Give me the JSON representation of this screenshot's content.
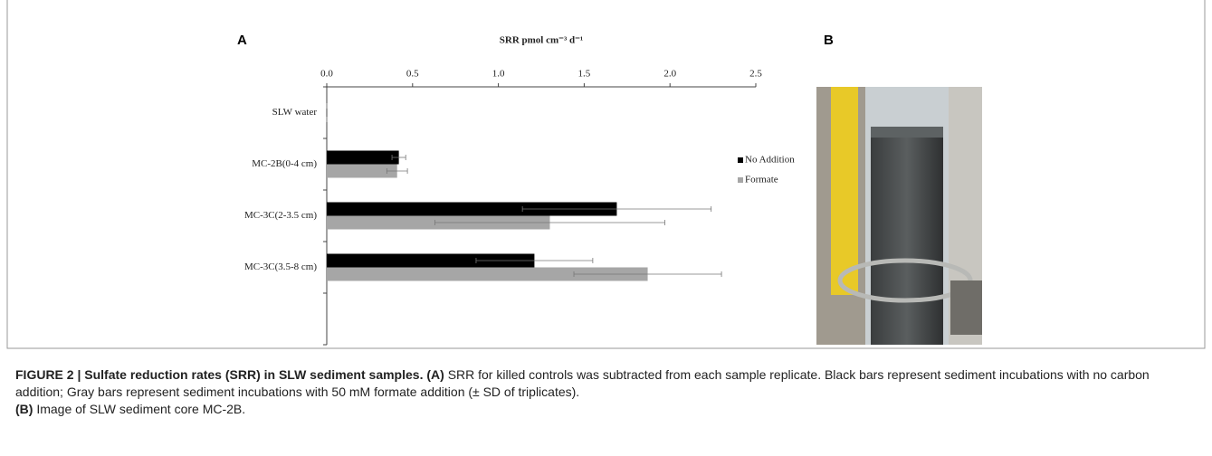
{
  "panel_a_label": "A",
  "panel_b_label": "B",
  "chart_data": {
    "type": "bar",
    "orientation": "horizontal",
    "x_label": "SRR pmol cm⁻³ d⁻¹",
    "categories": [
      "SLW water",
      "MC-2B(0-4 cm)",
      "MC-3C(2-3.5 cm)",
      "MC-3C(3.5-8 cm)",
      null
    ],
    "series": [
      {
        "name": "No Addition",
        "color": "#000000",
        "values": [
          0,
          0.42,
          1.69,
          1.21,
          null
        ],
        "errors": [
          0,
          0.04,
          0.55,
          0.34,
          null
        ]
      },
      {
        "name": "Formate",
        "color": "#a6a6a6",
        "values": [
          0,
          0.41,
          1.3,
          1.87,
          null
        ],
        "errors": [
          0,
          0.06,
          0.67,
          0.43,
          null
        ]
      }
    ],
    "xlim": [
      0,
      2.5
    ],
    "xticks": [
      {
        "value": 0,
        "label": "0.0"
      },
      0.5,
      {
        "value": 1,
        "label": "1.0"
      },
      1.5,
      {
        "value": 2,
        "label": "2.0"
      },
      2.5
    ],
    "legend": "right",
    "grid": false
  },
  "caption": {
    "figure_label": "FIGURE 2 | Sulfate reduction rates (SRR) in SLW sediment samples.",
    "panel_a_tag": "(A)",
    "panel_a_text": "SRR for killed controls was subtracted from each sample replicate. Black bars represent sediment incubations with no carbon addition; Gray bars represent sediment incubations with 50 mM formate addition (± SD of triplicates).",
    "panel_b_tag": "(B)",
    "panel_b_text": "Image of SLW sediment core MC-2B."
  }
}
